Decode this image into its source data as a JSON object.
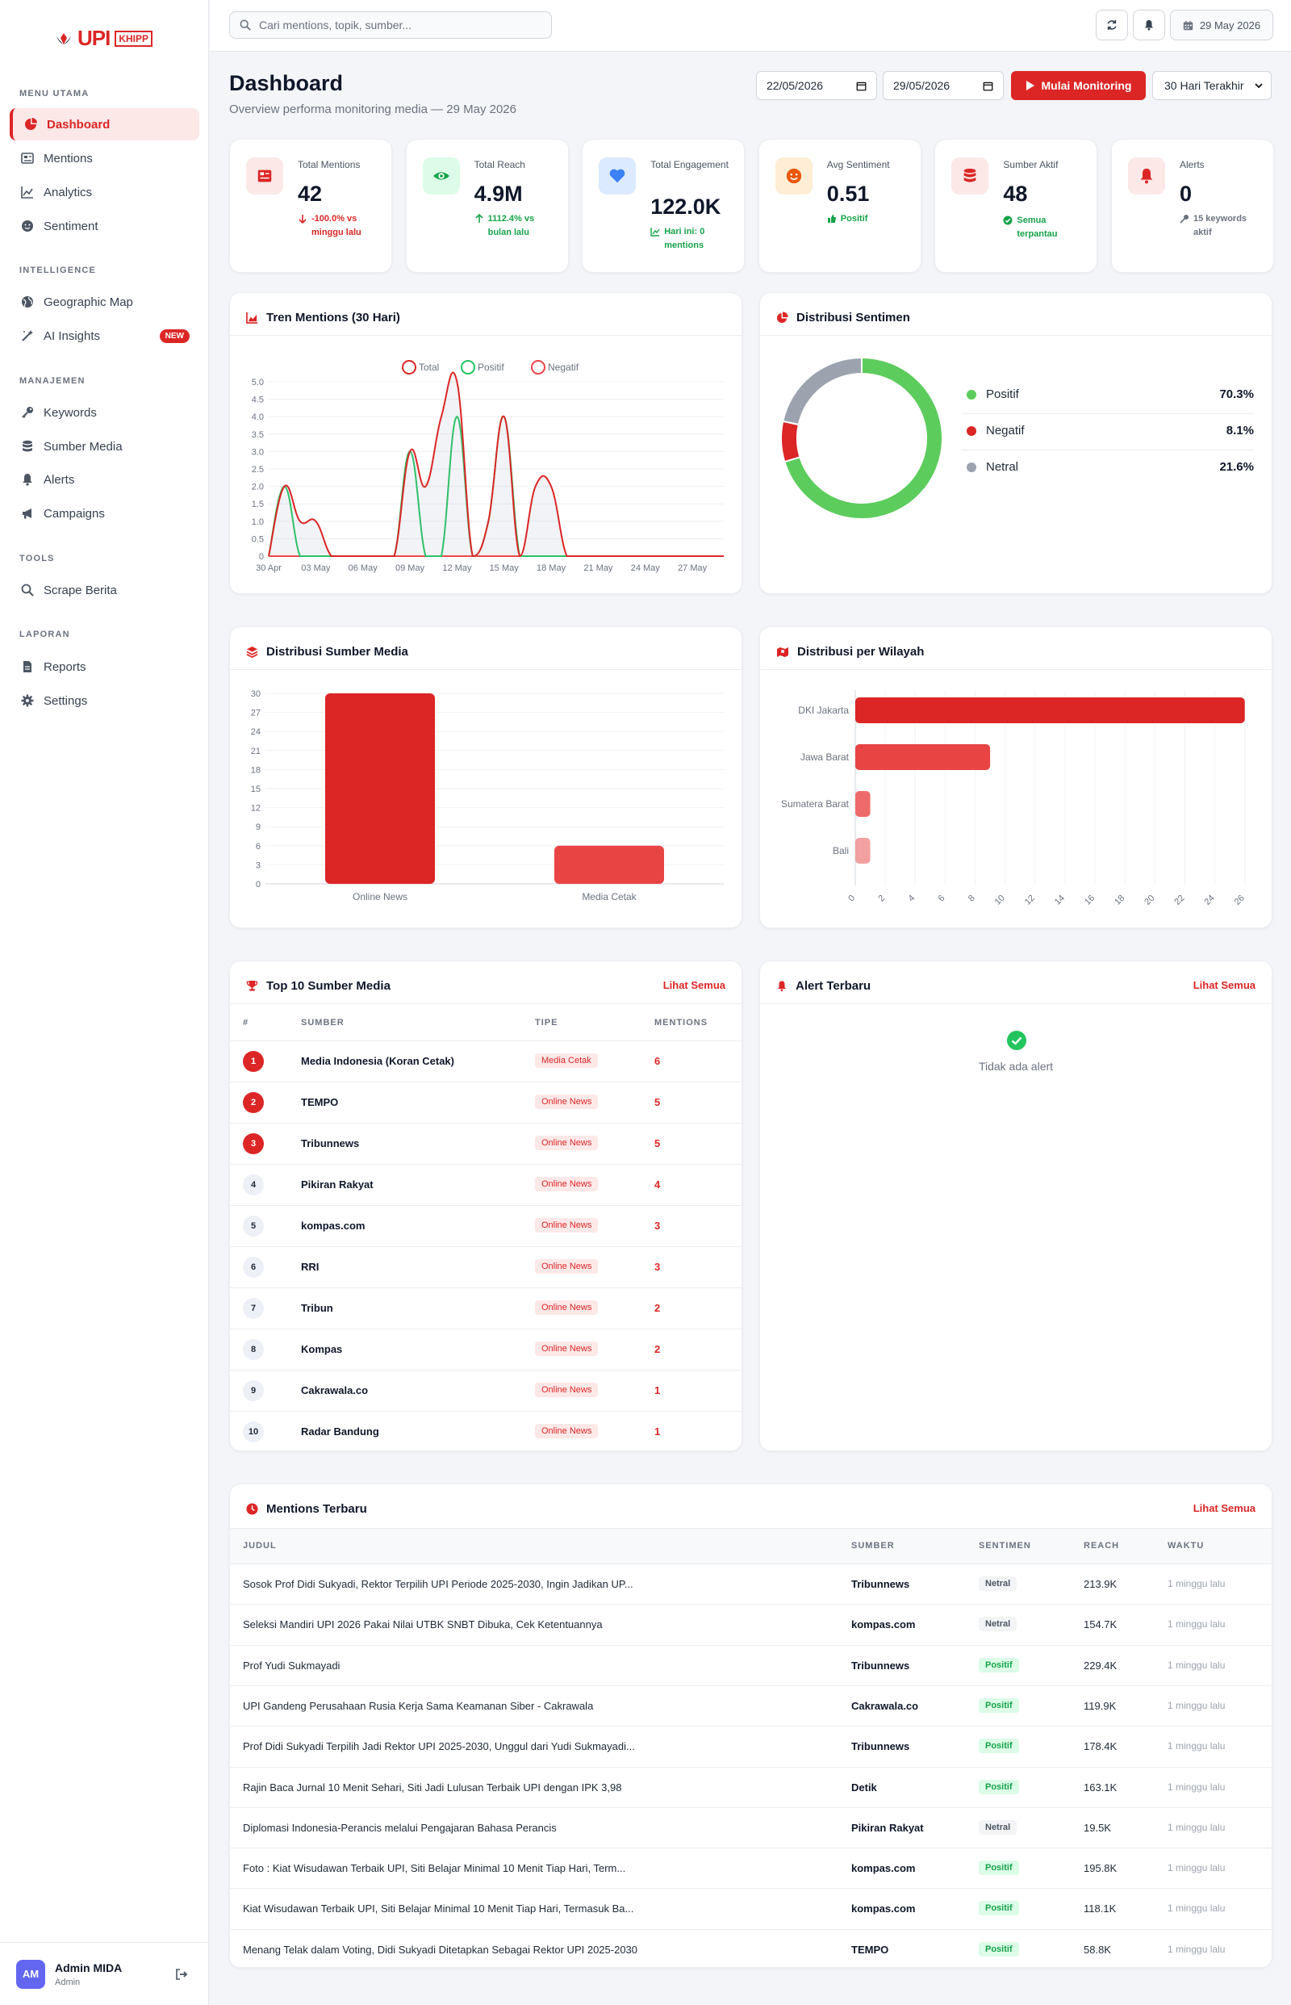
{
  "brand": {
    "mark": "UPI",
    "box": "KHIPP"
  },
  "sidebar": {
    "sections": [
      "MENU UTAMA",
      "INTELLIGENCE",
      "MANAJEMEN",
      "TOOLS",
      "LAPORAN"
    ],
    "items": [
      {
        "label": "Dashboard",
        "icon": "pie-chart-icon"
      },
      {
        "label": "Mentions",
        "icon": "newspaper-icon"
      },
      {
        "label": "Analytics",
        "icon": "line-chart-icon"
      },
      {
        "label": "Sentiment",
        "icon": "smile-icon"
      },
      {
        "label": "Geographic Map",
        "icon": "globe-icon"
      },
      {
        "label": "AI Insights",
        "icon": "magic-wand-icon",
        "badge": "NEW"
      },
      {
        "label": "Keywords",
        "icon": "key-icon"
      },
      {
        "label": "Sumber Media",
        "icon": "database-icon"
      },
      {
        "label": "Alerts",
        "icon": "bell-icon"
      },
      {
        "label": "Campaigns",
        "icon": "megaphone-icon"
      },
      {
        "label": "Scrape Berita",
        "icon": "search-icon"
      },
      {
        "label": "Reports",
        "icon": "file-icon"
      },
      {
        "label": "Settings",
        "icon": "gear-icon"
      }
    ],
    "user": {
      "initials": "AM",
      "name": "Admin MIDA",
      "role": "Admin"
    }
  },
  "topbar": {
    "search_placeholder": "Cari mentions, topik, sumber...",
    "date": "29 May 2026"
  },
  "header": {
    "title": "Dashboard",
    "subtitle": "Overview performa monitoring media — 29 May 2026",
    "date_from": "22/05/2026",
    "date_to": "29/05/2026",
    "start_button": "Mulai Monitoring",
    "range_select": "30 Hari Terakhir"
  },
  "stats": [
    {
      "label": "Total Mentions",
      "value": "42",
      "delta": "-100.0% vs minggu lalu",
      "delta_color": "#dc2626",
      "icon": "newspaper-icon",
      "icon_bg": "#fde8e8",
      "icon_color": "#dc2626"
    },
    {
      "label": "Total Reach",
      "value": "4.9M",
      "delta": "1112.4% vs bulan lalu",
      "delta_color": "#16a34a",
      "icon": "eye-icon",
      "icon_bg": "#dcfce7",
      "icon_color": "#16a34a"
    },
    {
      "label": "Total Engagement",
      "value": "122.0K",
      "delta": "Hari ini: 0 mentions",
      "delta_color": "#16a34a",
      "icon": "heart-icon",
      "icon_bg": "#dbeafe",
      "icon_color": "#3b82f6"
    },
    {
      "label": "Avg Sentiment",
      "value": "0.51",
      "delta": "Positif",
      "delta_color": "#16a34a",
      "icon": "smile-icon",
      "icon_bg": "#ffedd5",
      "icon_color": "#ea580c"
    },
    {
      "label": "Sumber Aktif",
      "value": "48",
      "delta": "Semua terpantau",
      "delta_color": "#16a34a",
      "icon": "database-icon",
      "icon_bg": "#fde8e8",
      "icon_color": "#dc2626"
    },
    {
      "label": "Alerts",
      "value": "0",
      "delta": "15 keywords aktif",
      "delta_color": "#6b7280",
      "icon": "bell-icon",
      "icon_bg": "#fde8e8",
      "icon_color": "#dc2626"
    }
  ],
  "trend_card": {
    "title": "Tren Mentions (30 Hari)"
  },
  "sentiment_card": {
    "title": "Distribusi Sentimen"
  },
  "media_card": {
    "title": "Distribusi Sumber Media"
  },
  "region_card": {
    "title": "Distribusi per Wilayah"
  },
  "chart_data": [
    {
      "type": "line",
      "title": "Tren Mentions (30 Hari)",
      "legend": "top-center",
      "ylim": [
        0,
        5
      ],
      "yticks": [
        "0",
        "0.5",
        "1.0",
        "1.5",
        "2.0",
        "2.5",
        "3.0",
        "3.5",
        "4.0",
        "4.5",
        "5.0"
      ],
      "xtick_labels": [
        "30 Apr",
        "03 May",
        "06 May",
        "09 May",
        "12 May",
        "15 May",
        "18 May",
        "21 May",
        "24 May",
        "27 May"
      ],
      "x": [
        "30 Apr",
        "01 May",
        "02 May",
        "03 May",
        "04 May",
        "05 May",
        "06 May",
        "07 May",
        "08 May",
        "09 May",
        "10 May",
        "11 May",
        "12 May",
        "13 May",
        "14 May",
        "15 May",
        "16 May",
        "17 May",
        "18 May",
        "19 May",
        "20 May",
        "21 May",
        "22 May",
        "23 May",
        "24 May",
        "25 May",
        "26 May",
        "27 May",
        "28 May",
        "29 May"
      ],
      "series": [
        {
          "name": "Total",
          "color": "#dc2626",
          "fill": true,
          "values": [
            0,
            2,
            1,
            1,
            0,
            0,
            0,
            0,
            0,
            3,
            2,
            4,
            5,
            0,
            1,
            4,
            0,
            2,
            2,
            0,
            0,
            0,
            0,
            0,
            0,
            0,
            0,
            0,
            0,
            0
          ]
        },
        {
          "name": "Positif",
          "color": "#22c55e",
          "fill": false,
          "values": [
            0,
            2,
            0,
            0,
            0,
            0,
            0,
            0,
            0,
            3,
            0,
            0,
            4,
            0,
            1,
            4,
            0,
            0,
            0,
            0,
            0,
            0,
            0,
            0,
            0,
            0,
            0,
            0,
            0,
            0
          ]
        },
        {
          "name": "Negatif",
          "color": "#ef4444",
          "fill": false,
          "values": [
            0,
            0,
            0,
            0,
            0,
            0,
            0,
            0,
            0,
            0,
            0,
            0,
            0,
            0,
            0,
            0,
            0,
            0,
            0,
            0,
            0,
            0,
            0,
            0,
            0,
            0,
            0,
            0,
            0,
            0
          ]
        }
      ]
    },
    {
      "type": "pie",
      "title": "Distribusi Sentimen",
      "labels": [
        "Positif",
        "Negatif",
        "Netral"
      ],
      "values": [
        70.3,
        8.1,
        21.6
      ],
      "display": [
        "70.3%",
        "8.1%",
        "21.6%"
      ],
      "colors": [
        "#5ccc5c",
        "#dc2626",
        "#9ca3af"
      ]
    },
    {
      "type": "bar",
      "title": "Distribusi Sumber Media",
      "categories": [
        "Online News",
        "Media Cetak"
      ],
      "values": [
        31,
        6
      ],
      "ylim": [
        0,
        31
      ],
      "yticks": [
        0,
        3,
        6,
        9,
        12,
        15,
        18,
        21,
        24,
        27,
        30
      ],
      "colors": [
        "#dc2626",
        "#e84444"
      ]
    },
    {
      "type": "bar",
      "title": "Distribusi per Wilayah",
      "orientation": "horizontal",
      "categories": [
        "DKI Jakarta",
        "Jawa Barat",
        "Sumatera Barat",
        "Bali"
      ],
      "values": [
        26,
        9,
        1,
        1
      ],
      "xlim": [
        0,
        26.5
      ],
      "xticks": [
        0,
        2,
        4,
        6,
        8,
        10,
        12,
        14,
        16,
        18,
        20,
        22,
        24,
        26
      ],
      "colors": [
        "#dc2626",
        "#e84444",
        "#ef6b6b",
        "#f3a0a0"
      ]
    }
  ],
  "top_sources": {
    "title": "Top 10 Sumber Media",
    "link": "Lihat Semua",
    "headers": [
      "#",
      "SUMBER",
      "TIPE",
      "MENTIONS"
    ],
    "rows": [
      {
        "rank": "1",
        "name": "Media Indonesia (Koran Cetak)",
        "type": "Media Cetak",
        "count": "6"
      },
      {
        "rank": "2",
        "name": "TEMPO",
        "type": "Online News",
        "count": "5"
      },
      {
        "rank": "3",
        "name": "Tribunnews",
        "type": "Online News",
        "count": "5"
      },
      {
        "rank": "4",
        "name": "Pikiran Rakyat",
        "type": "Online News",
        "count": "4"
      },
      {
        "rank": "5",
        "name": "kompas.com",
        "type": "Online News",
        "count": "3"
      },
      {
        "rank": "6",
        "name": "RRI",
        "type": "Online News",
        "count": "3"
      },
      {
        "rank": "7",
        "name": "Tribun",
        "type": "Online News",
        "count": "2"
      },
      {
        "rank": "8",
        "name": "Kompas",
        "type": "Online News",
        "count": "2"
      },
      {
        "rank": "9",
        "name": "Cakrawala.co",
        "type": "Online News",
        "count": "1"
      },
      {
        "rank": "10",
        "name": "Radar Bandung",
        "type": "Online News",
        "count": "1"
      }
    ]
  },
  "alerts": {
    "title": "Alert Terbaru",
    "link": "Lihat Semua",
    "empty": "Tidak ada alert"
  },
  "mentions": {
    "title": "Mentions Terbaru",
    "link": "Lihat Semua",
    "headers": [
      "JUDUL",
      "SUMBER",
      "SENTIMEN",
      "REACH",
      "WAKTU"
    ],
    "rows": [
      {
        "title": "Sosok Prof Didi Sukyadi, Rektor Terpilih UPI Periode 2025-2030, Ingin Jadikan UP...",
        "source": "Tribunnews",
        "sentiment": "Netral",
        "reach": "213.9K",
        "time": "1 minggu lalu"
      },
      {
        "title": "Seleksi Mandiri UPI 2026 Pakai Nilai UTBK SNBT Dibuka, Cek Ketentuannya",
        "source": "kompas.com",
        "sentiment": "Netral",
        "reach": "154.7K",
        "time": "1 minggu lalu"
      },
      {
        "title": "Prof Yudi Sukmayadi",
        "source": "Tribunnews",
        "sentiment": "Positif",
        "reach": "229.4K",
        "time": "1 minggu lalu"
      },
      {
        "title": "UPI Gandeng Perusahaan Rusia Kerja Sama Keamanan Siber - Cakrawala",
        "source": "Cakrawala.co",
        "sentiment": "Positif",
        "reach": "119.9K",
        "time": "1 minggu lalu"
      },
      {
        "title": "Prof Didi Sukyadi Terpilih Jadi Rektor UPI 2025-2030, Unggul dari Yudi Sukmayadi...",
        "source": "Tribunnews",
        "sentiment": "Positif",
        "reach": "178.4K",
        "time": "1 minggu lalu"
      },
      {
        "title": "Rajin Baca Jurnal 10 Menit Sehari, Siti Jadi Lulusan Terbaik UPI dengan IPK 3,98",
        "source": "Detik",
        "sentiment": "Positif",
        "reach": "163.1K",
        "time": "1 minggu lalu"
      },
      {
        "title": "Diplomasi Indonesia-Perancis melalui Pengajaran Bahasa Perancis",
        "source": "Pikiran Rakyat",
        "sentiment": "Netral",
        "reach": "19.5K",
        "time": "1 minggu lalu"
      },
      {
        "title": "Foto : Kiat Wisudawan Terbaik UPI, Siti Belajar Minimal 10 Menit Tiap Hari, Term...",
        "source": "kompas.com",
        "sentiment": "Positif",
        "reach": "195.8K",
        "time": "1 minggu lalu"
      },
      {
        "title": "Kiat Wisudawan Terbaik UPI, Siti Belajar Minimal 10 Menit Tiap Hari, Termasuk Ba...",
        "source": "kompas.com",
        "sentiment": "Positif",
        "reach": "118.1K",
        "time": "1 minggu lalu"
      },
      {
        "title": "Menang Telak dalam Voting, Didi Sukyadi Ditetapkan Sebagai Rektor UPI 2025-2030",
        "source": "TEMPO",
        "sentiment": "Positif",
        "reach": "58.8K",
        "time": "1 minggu lalu"
      }
    ]
  }
}
